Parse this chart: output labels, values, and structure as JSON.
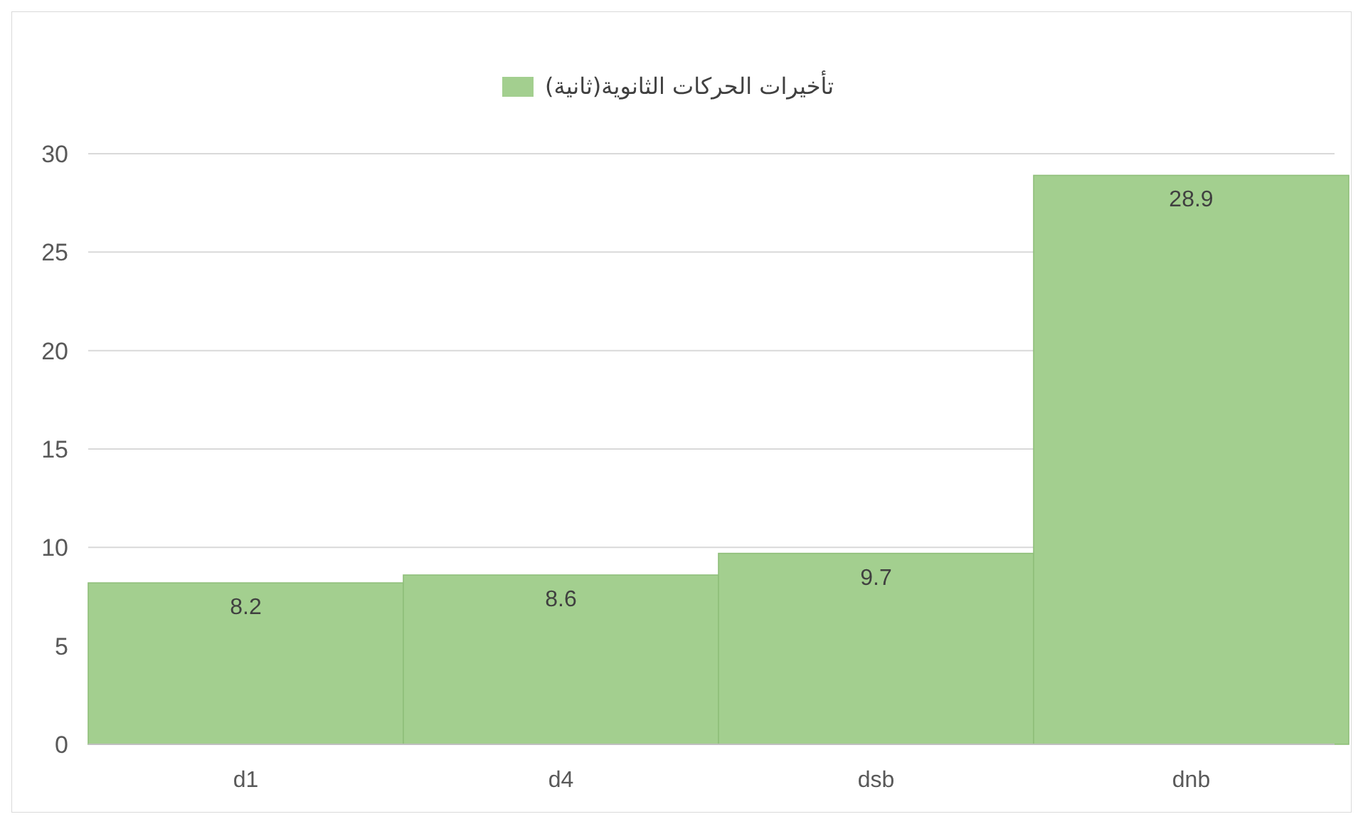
{
  "chart_data": {
    "type": "bar",
    "categories": [
      "d1",
      "d4",
      "dsb",
      "dnb"
    ],
    "series": [
      {
        "name": "تأخيرات الحركات الثانوية(ثانية)",
        "color": "#a3cf8f",
        "values": [
          8.2,
          8.6,
          9.7,
          28.9
        ]
      }
    ],
    "ylim": [
      0,
      30
    ],
    "yticks": [
      0,
      5,
      10,
      15,
      20,
      25,
      30
    ],
    "grid": "y",
    "legend": "top",
    "data_labels": true
  }
}
